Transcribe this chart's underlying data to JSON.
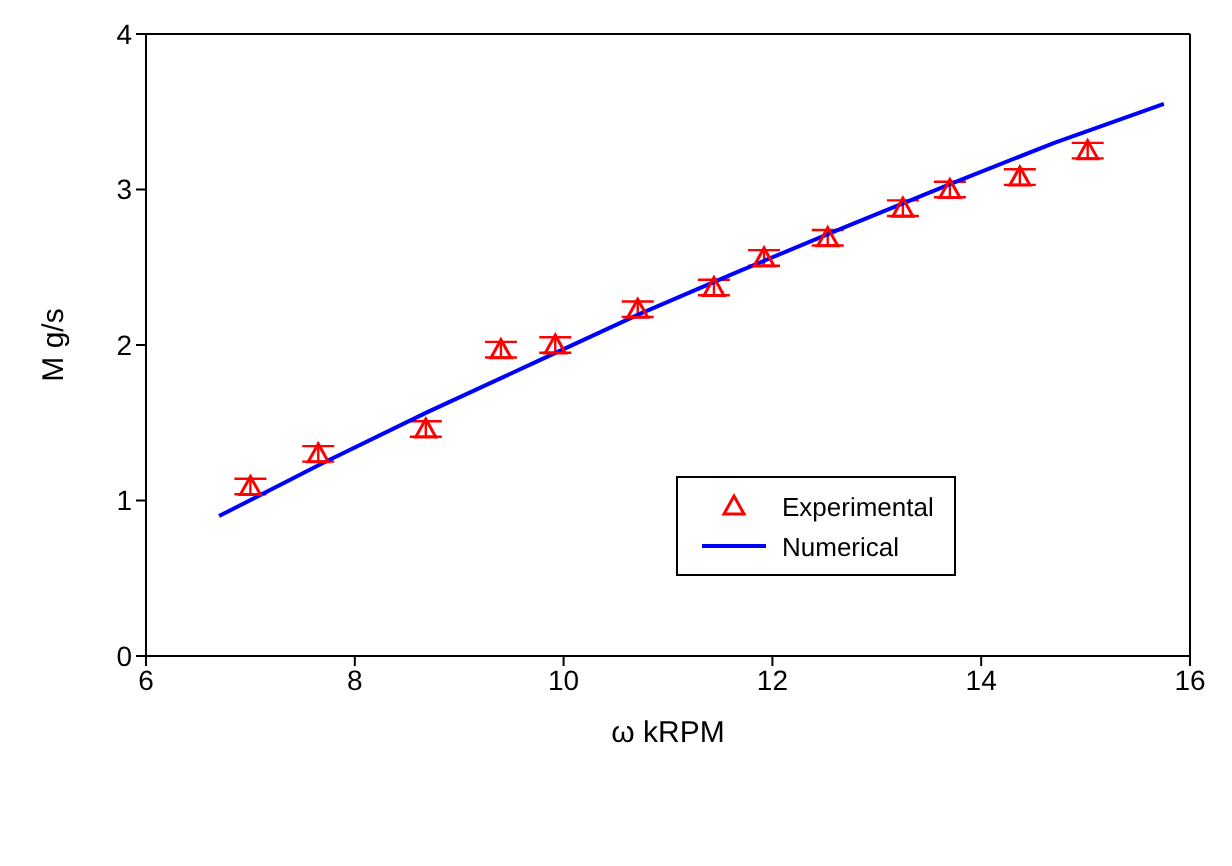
{
  "chart_data": {
    "type": "scatter",
    "xlabel": "ω  kRPM",
    "ylabel": "M g/s",
    "xlim": [
      6,
      16
    ],
    "xticks": [
      6,
      8,
      10,
      12,
      14,
      16
    ],
    "ylim": [
      0,
      4
    ],
    "yticks": [
      0,
      1,
      2,
      3,
      4
    ],
    "grid": false,
    "legend": "right",
    "series": [
      {
        "name": "Experimental",
        "color": "#ff0000",
        "marker": "triangle",
        "x": [
          7.0,
          7.65,
          8.68,
          9.4,
          9.92,
          10.71,
          11.44,
          11.92,
          12.53,
          13.25,
          13.7,
          14.37,
          15.02
        ],
        "values": [
          1.09,
          1.3,
          1.46,
          1.97,
          2.0,
          2.23,
          2.37,
          2.56,
          2.69,
          2.88,
          3.0,
          3.08,
          3.25
        ],
        "errors": [
          0.05,
          0.05,
          0.05,
          0.05,
          0.05,
          0.05,
          0.05,
          0.05,
          0.05,
          0.05,
          0.05,
          0.05,
          0.05
        ]
      },
      {
        "name": "Numerical",
        "type": "line",
        "color": "#0000ff",
        "marker": "none",
        "line_style": "solid",
        "x": [
          6.7,
          7.69,
          8.7,
          9.7,
          10.73,
          11.7,
          12.7,
          13.72,
          14.7,
          15.75
        ],
        "values": [
          0.9,
          1.24,
          1.57,
          1.88,
          2.2,
          2.48,
          2.76,
          3.04,
          3.3,
          3.55
        ]
      }
    ]
  }
}
